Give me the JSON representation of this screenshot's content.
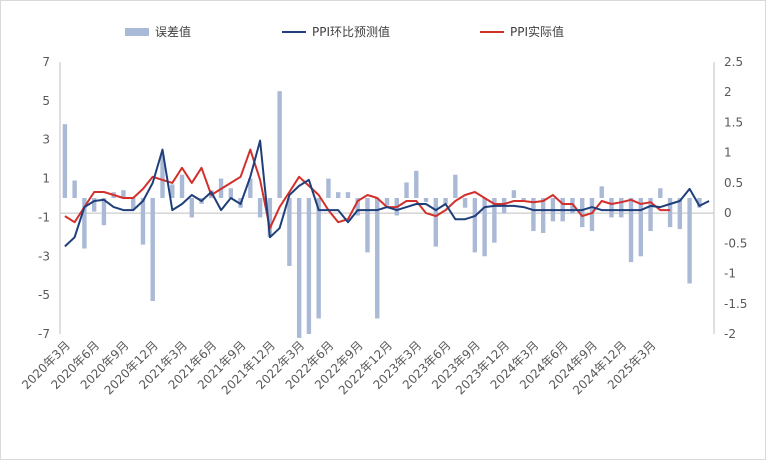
{
  "chart_data": {
    "type": "bar+line",
    "legend": [
      "误差值",
      "PPI环比预测值",
      "PPI实际值"
    ],
    "colors": {
      "error": "#a9b9d6",
      "forecast": "#1f3f7a",
      "actual": "#d2302b",
      "axis": "#bfbfbf"
    },
    "left_axis": {
      "ylim": [
        -7,
        7
      ],
      "ticks": [
        "7",
        "5",
        "3",
        "1",
        "-1",
        "-3",
        "-5",
        "-7"
      ]
    },
    "right_axis": {
      "ylim": [
        -2,
        2.5
      ],
      "ticks": [
        "2.5",
        "2",
        "1.5",
        "1",
        "0.5",
        "0",
        "-0.5",
        "-1",
        "-1.5",
        "-2"
      ]
    },
    "x_tick_labels": [
      "2020年3月",
      "2020年6月",
      "2020年9月",
      "2020年12月",
      "2021年3月",
      "2021年6月",
      "2021年9月",
      "2021年12月",
      "2022年3月",
      "2022年6月",
      "2022年9月",
      "2022年12月",
      "2023年3月",
      "2023年6月",
      "2023年9月",
      "2023年12月",
      "2024年3月",
      "2024年6月",
      "2024年9月",
      "2024年12月",
      "2025年3月"
    ],
    "error_values": [
      3.8,
      0.9,
      -2.6,
      -0.7,
      -1.4,
      0.3,
      0.4,
      -0.6,
      -2.4,
      -5.3,
      2.2,
      0.7,
      1.2,
      -1.0,
      -0.3,
      0.4,
      1.0,
      0.5,
      -0.5,
      1.0,
      -1.0,
      -2.0,
      5.5,
      -3.5,
      -7.2,
      -7.0,
      -6.2,
      1.0,
      0.3,
      0.3,
      -0.9,
      -2.8,
      -6.2,
      -0.4,
      -0.9,
      0.8,
      1.4,
      -0.2,
      -2.5,
      -0.3,
      1.2,
      -0.5,
      -2.8,
      -3.0,
      -2.3,
      -0.8,
      0.4,
      -0.1,
      -1.7,
      -1.8,
      -1.2,
      -1.2,
      -0.8,
      -1.5,
      -1.7,
      0.6,
      -1.0,
      -1.0,
      -3.3,
      -3.0,
      -1.7,
      0.5,
      -1.5,
      -1.6,
      -4.4,
      -0.5
    ],
    "forecast_values": [
      -0.55,
      -0.4,
      0.1,
      0.2,
      0.22,
      0.1,
      0.05,
      0.05,
      0.2,
      0.5,
      1.05,
      0.05,
      0.15,
      0.3,
      0.2,
      0.35,
      0.05,
      0.25,
      0.15,
      0.6,
      1.2,
      -0.4,
      -0.25,
      0.3,
      0.45,
      0.55,
      0.05,
      0.05,
      0.05,
      -0.15,
      0.05,
      0.05,
      0.05,
      0.1,
      0.05,
      0.1,
      0.15,
      0.15,
      0.05,
      0.15,
      -0.1,
      -0.1,
      -0.05,
      0.1,
      0.12,
      0.12,
      0.12,
      0.1,
      0.05,
      0.05,
      0.05,
      0.05,
      0.05,
      0.05,
      0.1,
      0.05,
      0.05,
      0.05,
      0.05,
      0.05,
      0.12,
      0.1,
      0.15,
      0.2,
      0.4,
      0.12,
      0.2
    ],
    "actual_values": [
      -0.05,
      -0.15,
      0.1,
      0.35,
      0.35,
      0.3,
      0.25,
      0.25,
      0.4,
      0.6,
      0.55,
      0.5,
      0.75,
      0.5,
      0.75,
      0.3,
      0.4,
      0.5,
      0.6,
      1.05,
      0.55,
      -0.25,
      0.1,
      0.35,
      0.6,
      0.45,
      0.3,
      0.05,
      -0.15,
      -0.1,
      0.2,
      0.3,
      0.25,
      0.1,
      0.1,
      0.2,
      0.2,
      0.0,
      -0.05,
      0.05,
      0.2,
      0.3,
      0.35,
      0.25,
      0.15,
      0.15,
      0.2,
      0.2,
      0.18,
      0.2,
      0.3,
      0.15,
      0.15,
      -0.05,
      0.0,
      0.2,
      0.15,
      0.18,
      0.22,
      0.15,
      0.18,
      0.05,
      0.05
    ]
  }
}
